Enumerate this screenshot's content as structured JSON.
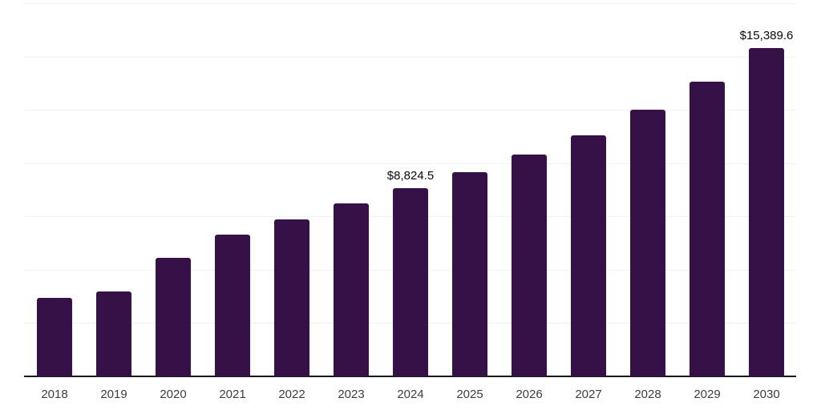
{
  "chart_data": {
    "type": "bar",
    "title": "",
    "xlabel": "",
    "ylabel": "",
    "categories": [
      "2018",
      "2019",
      "2020",
      "2021",
      "2022",
      "2023",
      "2024",
      "2025",
      "2026",
      "2027",
      "2028",
      "2029",
      "2030"
    ],
    "values": [
      3680,
      3980,
      5540,
      6630,
      7370,
      8120,
      8824.5,
      9570,
      10400,
      11290,
      12490,
      13830,
      15389.6
    ],
    "bar_labels": [
      "",
      "",
      "",
      "",
      "",
      "",
      "$8,824.5",
      "",
      "",
      "",
      "",
      "",
      "$15,389.6"
    ],
    "ylim": [
      0,
      17500
    ],
    "gridline_step": 2500,
    "grid": "horizontal-light",
    "legend": "none",
    "y_tick_labels_visible": false
  },
  "colors": {
    "background": "#ffffff",
    "bar": "#351148",
    "axis_line": "#181820",
    "gridline": "#f2f2f2",
    "tick_label": "#3d3d3d",
    "value_label": "#0a0a0a"
  }
}
